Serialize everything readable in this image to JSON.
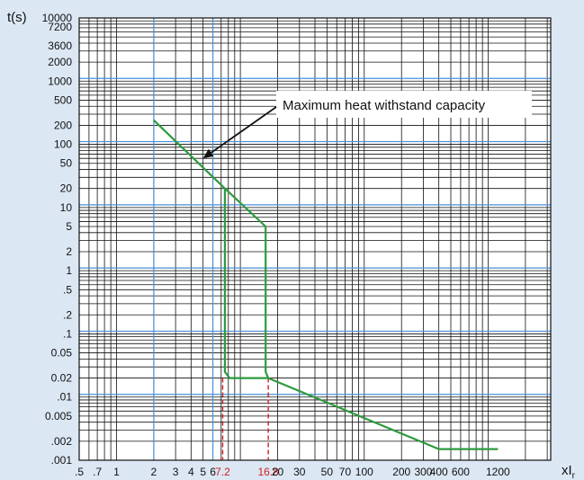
{
  "chart_data": {
    "type": "line",
    "title": "",
    "ylabel": "t(s)",
    "xlabel": "xIr",
    "xlabel_main": "xI",
    "xlabel_sub": "r",
    "x_scale": "log",
    "y_scale": "log",
    "xlim": [
      0.5,
      3200
    ],
    "ylim": [
      0.001,
      10000
    ],
    "grid": true,
    "y_ticks": [
      {
        "v": 10000,
        "label": "10000"
      },
      {
        "v": 7200,
        "label": "7200"
      },
      {
        "v": 3600,
        "label": "3600"
      },
      {
        "v": 2000,
        "label": "2000"
      },
      {
        "v": 1000,
        "label": "1000"
      },
      {
        "v": 500,
        "label": "500"
      },
      {
        "v": 200,
        "label": "200"
      },
      {
        "v": 100,
        "label": "100"
      },
      {
        "v": 50,
        "label": "50"
      },
      {
        "v": 20,
        "label": "20"
      },
      {
        "v": 10,
        "label": "10"
      },
      {
        "v": 5,
        "label": "5"
      },
      {
        "v": 2,
        "label": "2"
      },
      {
        "v": 1,
        "label": "1"
      },
      {
        "v": 0.5,
        "label": ".5"
      },
      {
        "v": 0.2,
        "label": ".2"
      },
      {
        "v": 0.1,
        "label": ".1"
      },
      {
        "v": 0.05,
        "label": "0.05"
      },
      {
        "v": 0.02,
        "label": "0.02"
      },
      {
        "v": 0.01,
        "label": ".01"
      },
      {
        "v": 0.005,
        "label": "0.005"
      },
      {
        "v": 0.002,
        "label": ".002"
      },
      {
        "v": 0.001,
        "label": ".001"
      }
    ],
    "x_ticks": [
      {
        "v": 0.5,
        "label": ".5"
      },
      {
        "v": 0.7,
        "label": ".7"
      },
      {
        "v": 1,
        "label": "1"
      },
      {
        "v": 2,
        "label": "2"
      },
      {
        "v": 3,
        "label": "3"
      },
      {
        "v": 4,
        "label": "4"
      },
      {
        "v": 5,
        "label": "5"
      },
      {
        "v": 6,
        "label": "6"
      },
      {
        "v": 7.2,
        "label": "7.2",
        "highlight": true
      },
      {
        "v": 16.8,
        "label": "16.8",
        "highlight": true
      },
      {
        "v": 20,
        "label": "20"
      },
      {
        "v": 30,
        "label": "30"
      },
      {
        "v": 50,
        "label": "50"
      },
      {
        "v": 70,
        "label": "70"
      },
      {
        "v": 100,
        "label": "100"
      },
      {
        "v": 200,
        "label": "200"
      },
      {
        "v": 300,
        "label": "300"
      },
      {
        "v": 400,
        "label": "400"
      },
      {
        "v": 600,
        "label": "600"
      },
      {
        "v": 1200,
        "label": "1200"
      }
    ],
    "series": [
      {
        "color": "#2e9a3f",
        "points": [
          [
            2,
            240
          ],
          [
            7.5,
            20
          ],
          [
            16,
            5
          ],
          [
            16,
            0.025
          ],
          [
            16.8,
            0.02
          ],
          [
            400,
            0.0015
          ],
          [
            1200,
            0.0015
          ]
        ]
      },
      {
        "color": "#2e9a3f",
        "points": [
          [
            7.5,
            20
          ],
          [
            7.5,
            0.025
          ],
          [
            8.2,
            0.02
          ],
          [
            16.8,
            0.02
          ]
        ]
      }
    ],
    "reference_lines": [
      {
        "x": 7.2,
        "from_y": 0.02,
        "color": "#d11f1f",
        "style": "dashed"
      },
      {
        "x": 16.8,
        "from_y": 0.02,
        "color": "#d11f1f",
        "style": "dashed"
      }
    ],
    "blue_vertical_lines": [
      2,
      6
    ],
    "blue_horizontal_lines": [
      1000,
      100,
      10,
      1,
      0.1,
      0.01
    ],
    "annotation": {
      "text": "Maximum heat withstand capacity",
      "arrow_target": [
        5,
        60
      ]
    },
    "colors": {
      "background": "#dbe7f3",
      "plot_area": "#ffffff",
      "grid": "#111111",
      "blue_grid": "#4a8fd8",
      "curve": "#2e9a3f",
      "highlight": "#d11f1f"
    }
  }
}
